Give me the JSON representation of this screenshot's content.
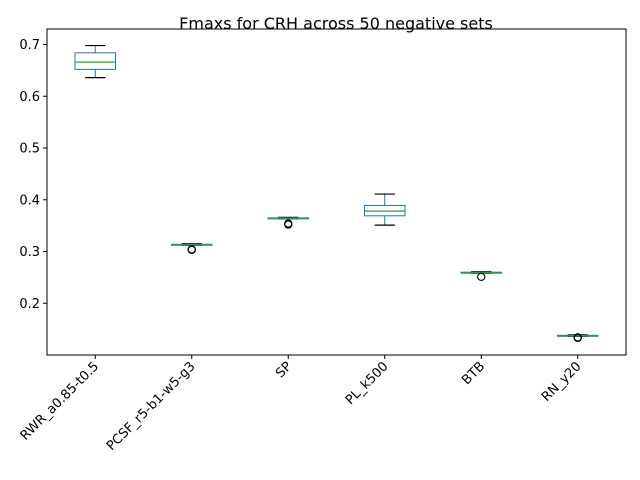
{
  "chart_data": {
    "type": "box",
    "title": "Fmaxs for CRH across 50 negative sets",
    "xlabel": "",
    "ylabel": "",
    "ylim": [
      0.1,
      0.73
    ],
    "yticks": [
      0.2,
      0.3,
      0.4,
      0.5,
      0.6,
      0.7
    ],
    "ytick_labels": [
      "0.2",
      "0.3",
      "0.4",
      "0.5",
      "0.6",
      "0.7"
    ],
    "categories": [
      "RWR_a0.85-t0.5",
      "PCSF_r5-b1-w5-g3",
      "SP",
      "PL_k500",
      "BTB",
      "RN_y20"
    ],
    "boxes": [
      {
        "whislo": 0.636,
        "q1": 0.652,
        "med": 0.666,
        "q3": 0.684,
        "whishi": 0.698,
        "fliers": []
      },
      {
        "whislo": 0.312,
        "q1": 0.313,
        "med": 0.313,
        "q3": 0.314,
        "whishi": 0.315,
        "fliers": [
          0.304,
          0.303
        ]
      },
      {
        "whislo": 0.363,
        "q1": 0.364,
        "med": 0.364,
        "q3": 0.365,
        "whishi": 0.366,
        "fliers": [
          0.354,
          0.352
        ]
      },
      {
        "whislo": 0.351,
        "q1": 0.369,
        "med": 0.378,
        "q3": 0.389,
        "whishi": 0.411,
        "fliers": []
      },
      {
        "whislo": 0.258,
        "q1": 0.259,
        "med": 0.259,
        "q3": 0.26,
        "whishi": 0.261,
        "fliers": [
          0.251
        ]
      },
      {
        "whislo": 0.136,
        "q1": 0.137,
        "med": 0.137,
        "q3": 0.138,
        "whishi": 0.139,
        "fliers": [
          0.134,
          0.133
        ]
      }
    ],
    "colors": {
      "box": "#1f77b4",
      "median": "#2ca02c",
      "whisker": "#000000",
      "flier": "#000000"
    },
    "grid": false,
    "legend": "none"
  }
}
